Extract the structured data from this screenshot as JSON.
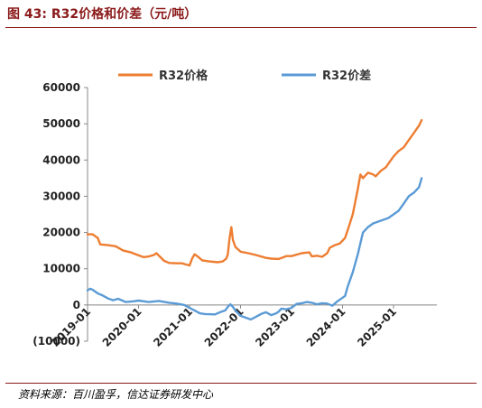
{
  "title": "图 43:  R32价格和价差（元/吨）",
  "source": "资料来源：百川盈孚，信达证券研发中心",
  "chart_data": {
    "type": "line",
    "title": "图 43:  R32价格和价差（元/吨）",
    "xlabel": "",
    "ylabel": "",
    "ylim": [
      -10000,
      60000
    ],
    "yticks": [
      -10000,
      0,
      10000,
      20000,
      30000,
      40000,
      50000,
      60000
    ],
    "ytick_labels": [
      "(10000)",
      "0",
      "10000",
      "20000",
      "30000",
      "40000",
      "50000",
      "60000"
    ],
    "negative_label_color": "#C00000",
    "xlim": [
      2019.0,
      2025.85
    ],
    "xticks": [
      2019.0,
      2020.0,
      2021.0,
      2022.0,
      2023.0,
      2024.0,
      2025.0
    ],
    "xtick_labels": [
      "2019-01",
      "2020-01",
      "2021-01",
      "2022-01",
      "2023-01",
      "2024-01",
      "2025-01"
    ],
    "legend": "top",
    "grid": false,
    "series": [
      {
        "name": "R32价格",
        "color": "#ED7D31",
        "x": [
          2019.0,
          2019.1,
          2019.2,
          2019.25,
          2019.4,
          2019.55,
          2019.7,
          2019.85,
          2020.0,
          2020.1,
          2020.2,
          2020.3,
          2020.35,
          2020.5,
          2020.6,
          2020.75,
          2020.85,
          2020.92,
          2021.0,
          2021.05,
          2021.1,
          2021.15,
          2021.25,
          2021.4,
          2021.55,
          2021.65,
          2021.72,
          2021.75,
          2021.78,
          2021.82,
          2021.85,
          2021.9,
          2022.0,
          2022.15,
          2022.3,
          2022.5,
          2022.6,
          2022.75,
          2022.9,
          2023.0,
          2023.2,
          2023.35,
          2023.4,
          2023.5,
          2023.6,
          2023.7,
          2023.75,
          2023.85,
          2023.95,
          2024.05,
          2024.12,
          2024.2,
          2024.3,
          2024.35,
          2024.4,
          2024.5,
          2024.6,
          2024.65,
          2024.75,
          2024.85,
          2025.0,
          2025.1,
          2025.2,
          2025.3,
          2025.4,
          2025.5,
          2025.55
        ],
        "values": [
          19500,
          19500,
          18500,
          16700,
          16500,
          16200,
          15000,
          14500,
          13700,
          13200,
          13400,
          13800,
          14300,
          12200,
          11600,
          11500,
          11500,
          11200,
          10900,
          12800,
          14000,
          13500,
          12300,
          12000,
          11800,
          12000,
          12800,
          14000,
          18000,
          21500,
          18000,
          16000,
          14700,
          14300,
          13800,
          13000,
          12800,
          12700,
          13500,
          13500,
          14300,
          14500,
          13400,
          13600,
          13300,
          14300,
          15800,
          16500,
          17000,
          18500,
          21500,
          25000,
          32000,
          36000,
          35000,
          36500,
          36000,
          35500,
          37000,
          38000,
          41000,
          42500,
          43500,
          45500,
          47500,
          49500,
          51000
        ]
      },
      {
        "name": "R32价差",
        "color": "#5B9BD5",
        "x": [
          2019.0,
          2019.05,
          2019.1,
          2019.2,
          2019.3,
          2019.4,
          2019.5,
          2019.6,
          2019.75,
          2019.9,
          2020.0,
          2020.2,
          2020.4,
          2020.6,
          2020.75,
          2020.9,
          2021.0,
          2021.1,
          2021.2,
          2021.3,
          2021.5,
          2021.6,
          2021.7,
          2021.75,
          2021.8,
          2021.85,
          2021.9,
          2022.0,
          2022.1,
          2022.2,
          2022.3,
          2022.4,
          2022.5,
          2022.6,
          2022.7,
          2022.75,
          2022.8,
          2022.9,
          2023.0,
          2023.1,
          2023.2,
          2023.3,
          2023.4,
          2023.5,
          2023.6,
          2023.7,
          2023.8,
          2023.9,
          2024.0,
          2024.05,
          2024.1,
          2024.2,
          2024.3,
          2024.4,
          2024.5,
          2024.6,
          2024.7,
          2024.8,
          2024.9,
          2025.0,
          2025.1,
          2025.2,
          2025.3,
          2025.4,
          2025.5,
          2025.55
        ],
        "values": [
          4000,
          4500,
          4200,
          3200,
          2600,
          1800,
          1300,
          1700,
          800,
          1000,
          1200,
          800,
          1100,
          600,
          400,
          0,
          -800,
          -1500,
          -2300,
          -2500,
          -2600,
          -2000,
          -1500,
          -500,
          200,
          -500,
          -1500,
          -3000,
          -3500,
          -4000,
          -3300,
          -2500,
          -2000,
          -2800,
          -2300,
          -1800,
          -1000,
          -1200,
          -800,
          300,
          500,
          800,
          600,
          200,
          500,
          400,
          -200,
          1000,
          2000,
          2500,
          5000,
          9000,
          14000,
          20000,
          21500,
          22500,
          23000,
          23500,
          24000,
          25000,
          26000,
          28000,
          30000,
          31000,
          32500,
          35000
        ]
      }
    ]
  }
}
